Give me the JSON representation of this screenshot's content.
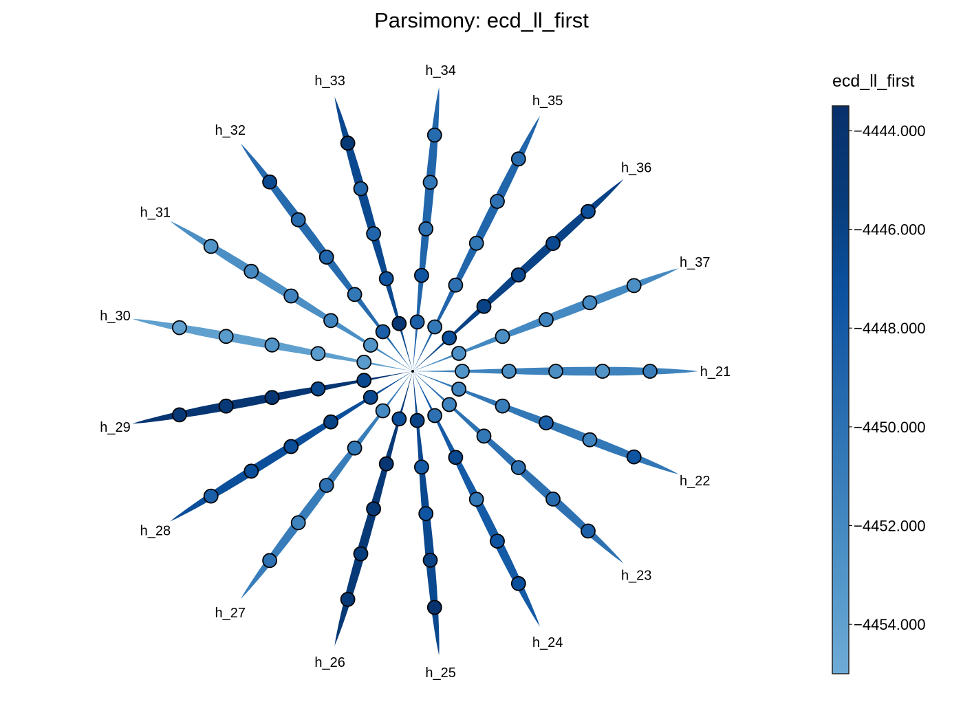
{
  "chart_data": {
    "type": "radial_tree",
    "title": "Parsimony: ecd_ll_first",
    "colorbar": {
      "label": "ecd_ll_first",
      "range": [
        -4455.0,
        -4443.5
      ],
      "ticks": [
        -4444.0,
        -4446.0,
        -4448.0,
        -4450.0,
        -4452.0,
        -4454.0
      ],
      "tick_labels": [
        "−4444.000",
        "−4446.000",
        "−4448.000",
        "−4450.000",
        "−4452.000",
        "−4454.000"
      ],
      "colormap": [
        "#6fabd6",
        "#5296c9",
        "#3a7fbb",
        "#2468ad",
        "#0c52a0",
        "#083c7a",
        "#08306b"
      ]
    },
    "branches": [
      {
        "label": "h_21",
        "branch_value": -4451.5,
        "node_values": [
          -4453.0,
          -4452.5,
          -4452.5,
          -4453.0,
          -4451.0
        ]
      },
      {
        "label": "h_22",
        "branch_value": -4450.5,
        "node_values": [
          -4451.5,
          -4451.0,
          -4448.5,
          -4451.5,
          -4447.5
        ]
      },
      {
        "label": "h_23",
        "branch_value": -4450.0,
        "node_values": [
          -4451.5,
          -4450.5,
          -4450.0,
          -4449.5,
          -4448.5
        ]
      },
      {
        "label": "h_24",
        "branch_value": -4448.0,
        "node_values": [
          -4450.0,
          -4446.5,
          -4450.5,
          -4447.5,
          -4447.0
        ]
      },
      {
        "label": "h_25",
        "branch_value": -4446.5,
        "node_values": [
          -4446.0,
          -4448.0,
          -4447.5,
          -4446.0,
          -4444.0
        ]
      },
      {
        "label": "h_26",
        "branch_value": -4445.0,
        "node_values": [
          -4447.0,
          -4444.5,
          -4445.0,
          -4445.5,
          -4445.0
        ]
      },
      {
        "label": "h_27",
        "branch_value": -4451.0,
        "node_values": [
          -4452.0,
          -4450.5,
          -4450.0,
          -4451.5,
          -4450.0
        ]
      },
      {
        "label": "h_28",
        "branch_value": -4447.0,
        "node_values": [
          -4446.5,
          -4446.0,
          -4447.0,
          -4447.0,
          -4448.5
        ]
      },
      {
        "label": "h_29",
        "branch_value": -4444.5,
        "node_values": [
          -4446.5,
          -4446.5,
          -4444.5,
          -4445.0,
          -4445.0
        ]
      },
      {
        "label": "h_30",
        "branch_value": -4454.0,
        "node_values": [
          -4453.5,
          -4453.5,
          -4453.0,
          -4453.5,
          -4454.0
        ]
      },
      {
        "label": "h_31",
        "branch_value": -4452.5,
        "node_values": [
          -4453.0,
          -4451.5,
          -4451.5,
          -4452.0,
          -4453.0
        ]
      },
      {
        "label": "h_32",
        "branch_value": -4449.5,
        "node_values": [
          -4448.5,
          -4450.5,
          -4449.0,
          -4449.5,
          -4446.5
        ]
      },
      {
        "label": "h_33",
        "branch_value": -4446.5,
        "node_values": [
          -4444.5,
          -4447.5,
          -4449.0,
          -4449.0,
          -4445.0
        ]
      },
      {
        "label": "h_34",
        "branch_value": -4449.0,
        "node_values": [
          -4448.5,
          -4447.5,
          -4450.0,
          -4450.5,
          -4449.5
        ]
      },
      {
        "label": "h_35",
        "branch_value": -4449.0,
        "node_values": [
          -4450.5,
          -4450.0,
          -4450.5,
          -4450.0,
          -4449.5
        ]
      },
      {
        "label": "h_36",
        "branch_value": -4446.0,
        "node_values": [
          -4447.0,
          -4446.0,
          -4446.5,
          -4446.5,
          -4447.0
        ]
      },
      {
        "label": "h_37",
        "branch_value": -4452.0,
        "node_values": [
          -4452.5,
          -4452.5,
          -4451.5,
          -4452.0,
          -4452.5
        ]
      }
    ]
  }
}
